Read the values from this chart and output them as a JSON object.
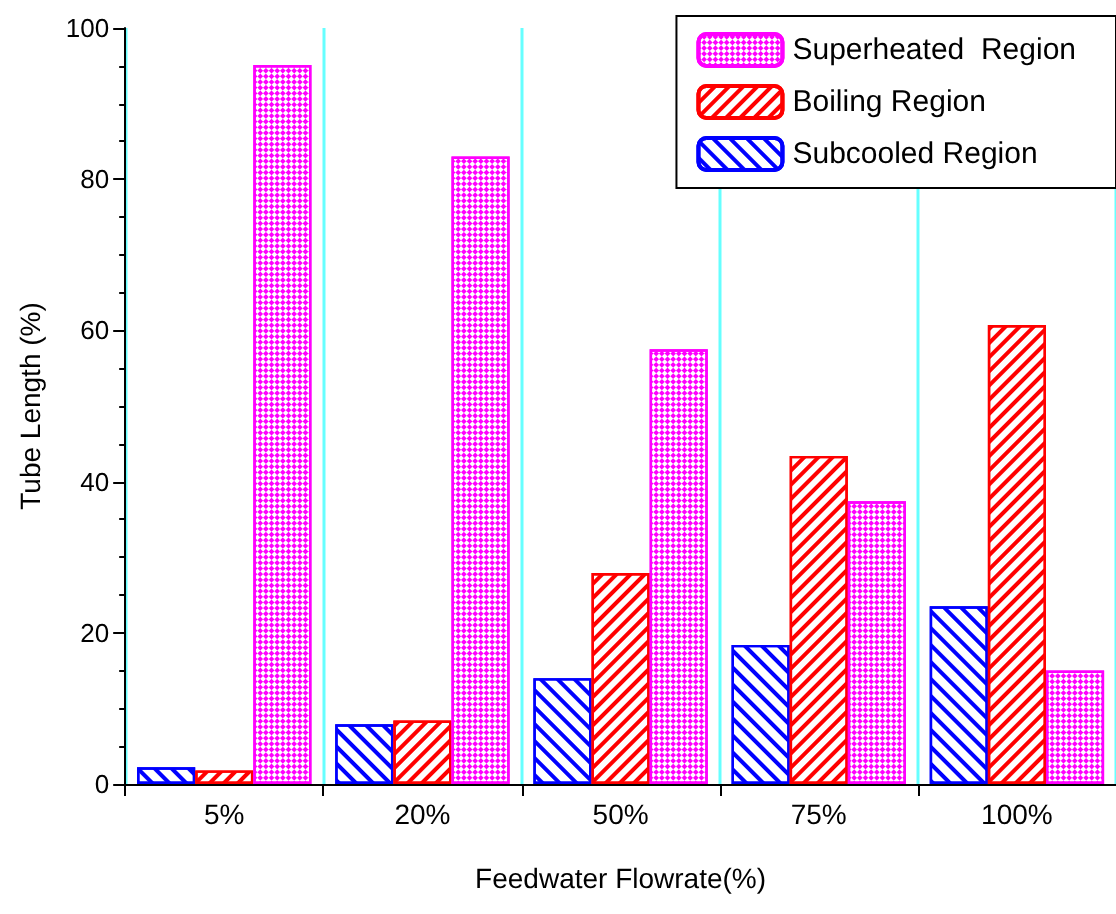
{
  "chart_data": {
    "type": "bar",
    "xlabel": "Feedwater Flowrate(%)",
    "ylabel": "Tube Length (%)",
    "categories": [
      "5%",
      "20%",
      "50%",
      "75%",
      "100%"
    ],
    "series": [
      {
        "name": "Subcooled Region",
        "color": "#0000ff",
        "values": [
          2.2,
          7.9,
          14.0,
          18.4,
          23.5
        ]
      },
      {
        "name": "Boiling Region",
        "color": "#ff0000",
        "values": [
          1.8,
          8.4,
          27.9,
          43.4,
          60.7
        ]
      },
      {
        "name": "Superheated  Region",
        "color": "#ff00ff",
        "values": [
          95.1,
          83.0,
          57.5,
          37.4,
          15.0
        ]
      }
    ],
    "ylim": [
      0,
      100
    ],
    "yticks": [
      0,
      20,
      40,
      60,
      80,
      100
    ],
    "grid": "x",
    "legend": "top right"
  }
}
